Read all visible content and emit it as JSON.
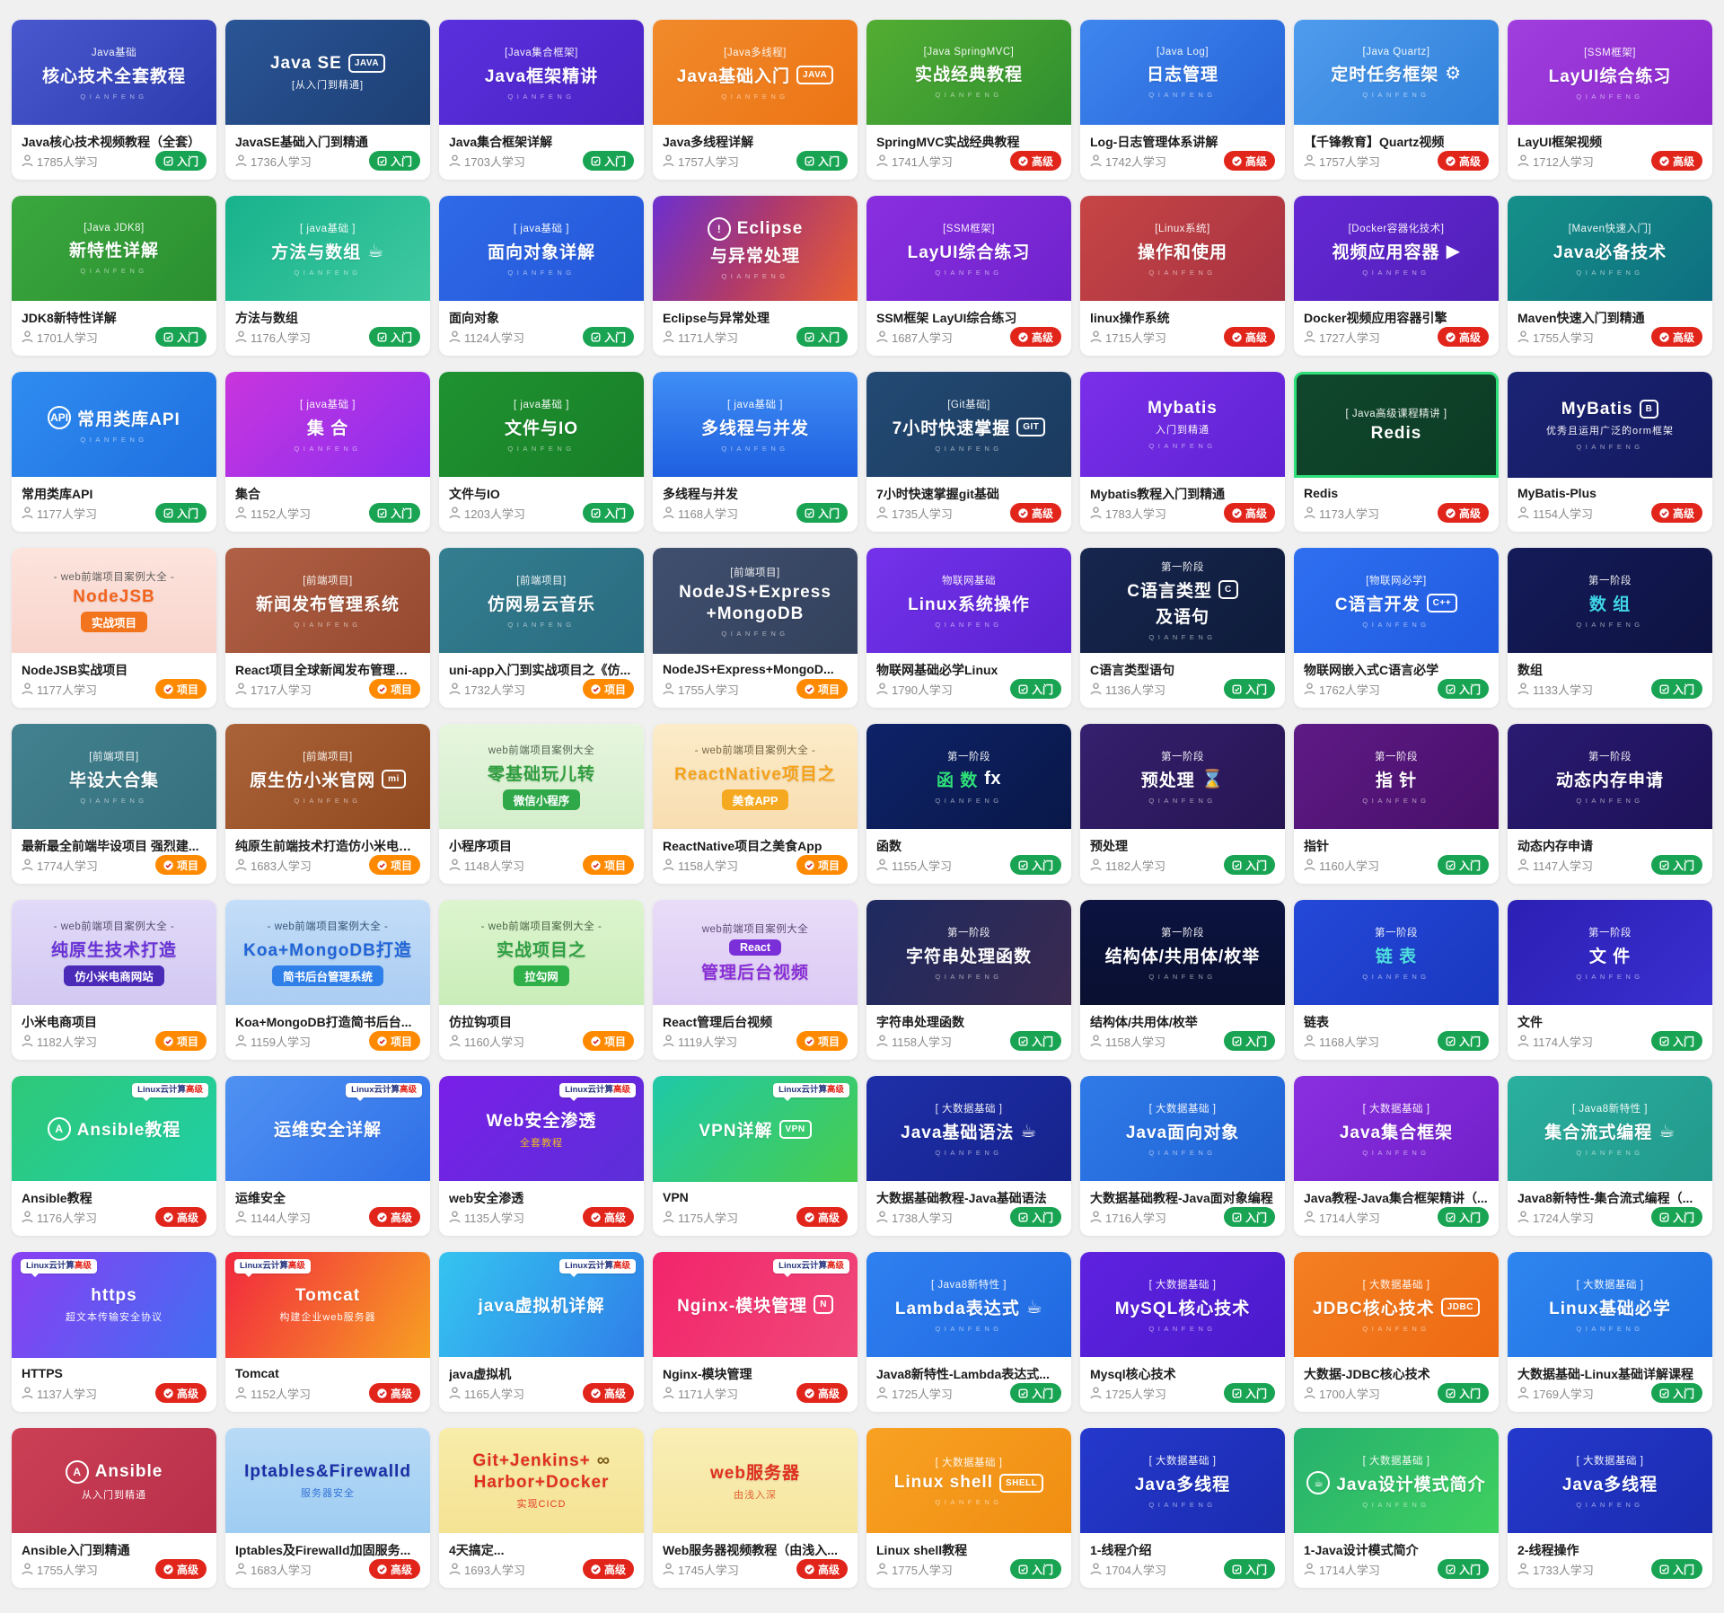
{
  "page": {
    "background": "#f0f0f1"
  },
  "watermark": "QIANFENG",
  "corner_badge": {
    "prefix": "Linux云计算",
    "highlight": "高级",
    "prefix_color": "#27357e",
    "highlight_color": "#e1251b"
  },
  "levels": {
    "b": {
      "label": "入门",
      "bg": "#18a452"
    },
    "a": {
      "label": "高级",
      "bg": "#e1251b"
    },
    "p": {
      "label": "项目",
      "bg": "#ff8a00"
    }
  },
  "cards": [
    {
      "t": "Java核心技术视频教程（全套）",
      "n": "1785人学习",
      "lv": "b",
      "th": {
        "bg": "linear-gradient(135deg,#4a58cf,#2c3cae)",
        "tag": "Java基础",
        "main": "核心技术全套教程",
        "wm": 1
      }
    },
    {
      "t": "JavaSE基础入门到精通",
      "n": "1736人学习",
      "lv": "b",
      "th": {
        "bg": "linear-gradient(135deg,#2a5596,#1d3f74)",
        "main": "Java SE",
        "sub": "[从入门到精通]",
        "icon": "JAVA",
        "iconBox": 1
      }
    },
    {
      "t": "Java集合框架详解",
      "n": "1703人学习",
      "lv": "b",
      "th": {
        "bg": "linear-gradient(135deg,#5a30dd,#4a22c4)",
        "tag": "[Java集合框架]",
        "main": "Java框架精讲",
        "wm": 1
      }
    },
    {
      "t": "Java多线程详解",
      "n": "1757人学习",
      "lv": "b",
      "th": {
        "bg": "linear-gradient(135deg,#f18a2b,#ec7414)",
        "tag": "[Java多线程]",
        "main": "Java基础入门",
        "icon": "JAVA",
        "iconBox": 1,
        "wm": 1
      }
    },
    {
      "t": "SpringMVC实战经典教程",
      "n": "1741人学习",
      "lv": "a",
      "th": {
        "bg": "linear-gradient(135deg,#53ad33,#2f8f2f)",
        "tag": "[Java SpringMVC]",
        "main": "实战经典教程",
        "wm": 1
      }
    },
    {
      "t": "Log-日志管理体系讲解",
      "n": "1742人学习",
      "lv": "a",
      "th": {
        "bg": "linear-gradient(135deg,#3f86ee,#2563d8)",
        "tag": "[Java Log]",
        "main": "日志管理",
        "wm": 1
      }
    },
    {
      "t": "【千锋教育】Quartz视频",
      "n": "1757人学习",
      "lv": "a",
      "th": {
        "bg": "linear-gradient(135deg,#4f9cee,#2f7fd9)",
        "tag": "[Java Quartz]",
        "main": "定时任务框架",
        "icon": "⚙",
        "wm": 1
      }
    },
    {
      "t": "LayUI框架视频",
      "n": "1712人学习",
      "lv": "a",
      "th": {
        "bg": "linear-gradient(135deg,#a03ede,#8a28cc)",
        "tag": "[SSM框架]",
        "main": "LayUI综合练习",
        "wm": 1
      }
    },
    {
      "t": "JDK8新特性详解",
      "n": "1701人学习",
      "lv": "b",
      "th": {
        "bg": "linear-gradient(135deg,#3aa83e,#2b8f30)",
        "tag": "[Java JDK8]",
        "main": "新特性详解",
        "wm": 1
      }
    },
    {
      "t": "方法与数组",
      "n": "1176人学习",
      "lv": "b",
      "th": {
        "bg": "linear-gradient(135deg,#17b28c,#3fc9a0)",
        "tag": "[ java基础 ]",
        "main": "方法与数组",
        "icon": "☕",
        "wm": 1
      }
    },
    {
      "t": "面向对象",
      "n": "1124人学习",
      "lv": "b",
      "th": {
        "bg": "linear-gradient(135deg,#2f6ae8,#2356d8)",
        "tag": "[ java基础 ]",
        "main": "面向对象详解",
        "wm": 1
      }
    },
    {
      "t": "Eclipse与异常处理",
      "n": "1171人学习",
      "lv": "b",
      "th": {
        "bg": "linear-gradient(120deg,#6c2fd0,#b03a6a,#e85f33)",
        "main": "Eclipse",
        "main2": "与异常处理",
        "icon": "!",
        "iconRound": 1,
        "wm": 1
      }
    },
    {
      "t": "SSM框架 LayUI综合练习",
      "n": "1687人学习",
      "lv": "a",
      "th": {
        "bg": "linear-gradient(135deg,#8a2fe0,#6f22cc)",
        "tag": "[SSM框架]",
        "main": "LayUI综合练习",
        "wm": 1
      }
    },
    {
      "t": "linux操作系统",
      "n": "1715人学习",
      "lv": "a",
      "th": {
        "bg": "linear-gradient(135deg,#c74545,#a63242)",
        "tag": "[Linux系统]",
        "main": "操作和使用",
        "wm": 1
      }
    },
    {
      "t": "Docker视频应用容器引擎",
      "n": "1727人学习",
      "lv": "a",
      "th": {
        "bg": "linear-gradient(135deg,#6528d4,#501fb8)",
        "tag": "[Docker容器化技术]",
        "main": "视频应用容器",
        "icon": "▶",
        "wm": 1
      }
    },
    {
      "t": "Maven快速入门到精通",
      "n": "1755人学习",
      "lv": "a",
      "th": {
        "bg": "linear-gradient(135deg,#159089,#0e6f80)",
        "tag": "[Maven快速入门]",
        "main": "Java必备技术",
        "wm": 1
      }
    },
    {
      "t": "常用类库API",
      "n": "1177人学习",
      "lv": "b",
      "th": {
        "bg": "linear-gradient(135deg,#2f8cf0,#1f6fe0)",
        "main": "常用类库API",
        "icon": "API",
        "iconRound": 1,
        "wm": 1
      }
    },
    {
      "t": "集合",
      "n": "1152人学习",
      "lv": "b",
      "th": {
        "bg": "linear-gradient(135deg,#c935dd,#8a2ff0)",
        "tag": "[ java基础 ]",
        "main": "集 合",
        "wm": 1
      }
    },
    {
      "t": "文件与IO",
      "n": "1203人学习",
      "lv": "b",
      "th": {
        "bg": "linear-gradient(135deg,#1f9230,#187f28)",
        "tag": "[ java基础 ]",
        "main": "文件与IO",
        "wm": 1
      }
    },
    {
      "t": "多线程与并发",
      "n": "1168人学习",
      "lv": "b",
      "th": {
        "bg": "linear-gradient(180deg,#3f8ef5,#1f5fe0)",
        "tag": "[ java基础 ]",
        "main": "多线程与并发",
        "wm": 1
      }
    },
    {
      "t": "7小时快速掌握git基础",
      "n": "1735人学习",
      "lv": "a",
      "th": {
        "bg": "linear-gradient(135deg,#234a74,#1b3a5e)",
        "tag": "[Git基础]",
        "main": "7小时快速掌握",
        "icon": "GIT",
        "iconBox": 1,
        "wm": 1
      }
    },
    {
      "t": "Mybatis教程入门到精通",
      "n": "1783人学习",
      "lv": "a",
      "th": {
        "bg": "linear-gradient(135deg,#7a2fe8,#5f22d4)",
        "main": "Mybatis",
        "sub": "入门到精通",
        "wm": 1
      }
    },
    {
      "t": "Redis",
      "n": "1173人学习",
      "lv": "a",
      "th": {
        "bg": "linear-gradient(135deg,#10482c,#0c3a24)",
        "border": "#2fe07a",
        "tag": "[ Java高级课程精讲 ]",
        "main": "Redis"
      }
    },
    {
      "t": "MyBatis-Plus",
      "n": "1154人学习",
      "lv": "a",
      "th": {
        "bg": "linear-gradient(135deg,#1b2375,#141a5e)",
        "main": "MyBatis",
        "sub": "优秀且运用广泛的orm框架",
        "icon": "B",
        "iconBox": 1,
        "wm": 1
      }
    },
    {
      "t": "NodeJSB实战项目",
      "n": "1177人学习",
      "lv": "p",
      "th": {
        "bg": "linear-gradient(180deg,#fce4dd,#f8d4cc)",
        "fg": "#555",
        "tag": "- web前端项目案例大全 -",
        "main": "NodeJSB",
        "mainC": "#f2641e",
        "pill": "实战项目",
        "pillBg": "#f2751e"
      }
    },
    {
      "t": "React项目全球新闻发布管理系统",
      "n": "1717人学习",
      "lv": "p",
      "th": {
        "bg": "linear-gradient(135deg,#b06045,#96492f)",
        "tag": "[前端项目]",
        "main": "新闻发布管理系统",
        "wm": 1
      }
    },
    {
      "t": "uni-app入门到实战项目之《仿...",
      "n": "1732人学习",
      "lv": "p",
      "th": {
        "bg": "linear-gradient(135deg,#337e90,#2a6b80)",
        "tag": "[前端项目]",
        "main": "仿网易云音乐",
        "wm": 1
      }
    },
    {
      "t": "NodeJS+Express+MongoD...",
      "n": "1755人学习",
      "lv": "p",
      "th": {
        "bg": "linear-gradient(135deg,#404f6e,#33415c)",
        "tag": "[前端项目]",
        "main": "NodeJS+Express",
        "main2": "+MongoDB",
        "wm": 1
      }
    },
    {
      "t": "物联网基础必学Linux",
      "n": "1790人学习",
      "lv": "b",
      "th": {
        "bg": "linear-gradient(135deg,#7433ea,#5a22d0)",
        "tag": "物联网基础",
        "main": "Linux系统操作",
        "wm": 1
      }
    },
    {
      "t": "C语言类型语句",
      "n": "1136人学习",
      "lv": "b",
      "th": {
        "bg": "linear-gradient(135deg,#16264e,#0f1b3a)",
        "tag": "第一阶段",
        "main": "C语言类型",
        "main2": "及语句",
        "icon": "C",
        "iconBox": 1,
        "wm": 1
      }
    },
    {
      "t": "物联网嵌入式C语言必学",
      "n": "1762人学习",
      "lv": "b",
      "th": {
        "bg": "linear-gradient(135deg,#2f6ff0,#1f5ae0)",
        "tag": "[物联网必学]",
        "main": "C语言开发",
        "icon": "C++",
        "iconBox": 1,
        "wm": 1
      }
    },
    {
      "t": "数组",
      "n": "1133人学习",
      "lv": "b",
      "th": {
        "bg": "linear-gradient(135deg,#141b58,#0e1342)",
        "tag": "第一阶段",
        "main": "数 组",
        "mainC": "#3fd4e8",
        "wm": 1
      }
    },
    {
      "t": "最新最全前端毕设项目 强烈建...",
      "n": "1774人学习",
      "lv": "p",
      "th": {
        "bg": "linear-gradient(135deg,#42818f,#36707e)",
        "tag": "[前端项目]",
        "main": "毕设大合集",
        "wm": 1
      }
    },
    {
      "t": "纯原生前端技术打造仿小米电商...",
      "n": "1683人学习",
      "lv": "p",
      "th": {
        "bg": "linear-gradient(135deg,#aa6238,#90481f)",
        "tag": "[前端项目]",
        "main": "原生仿小米官网",
        "icon": "mi",
        "iconBox": 1,
        "wm": 1
      }
    },
    {
      "t": "小程序项目",
      "n": "1148人学习",
      "lv": "p",
      "th": {
        "bg": "linear-gradient(180deg,#e7f6de,#d4eecb)",
        "fg": "#4a5a4a",
        "tag": "web前端项目案例大全",
        "main": "零基础玩儿转",
        "mainC": "#2f9e3f",
        "pill": "微信小程序",
        "pillBg": "#2fa84a"
      }
    },
    {
      "t": "ReactNative项目之美食App",
      "n": "1158人学习",
      "lv": "p",
      "th": {
        "bg": "linear-gradient(180deg,#fcecc9,#f8ddb0)",
        "fg": "#6a5a3a",
        "tag": "- web前端项目案例大全 -",
        "main": "ReactNative项目之",
        "mainC": "#f5a21b",
        "pill": "美食APP",
        "pillBg": "#f5a921"
      }
    },
    {
      "t": "函数",
      "n": "1155人学习",
      "lv": "b",
      "th": {
        "bg": "linear-gradient(135deg,#0e2268,#091848)",
        "tag": "第一阶段",
        "main": "函 数",
        "mainC": "#2fe07a",
        "icon": "fx",
        "wm": 1
      }
    },
    {
      "t": "预处理",
      "n": "1182人学习",
      "lv": "b",
      "th": {
        "bg": "linear-gradient(135deg,#35206e,#261552)",
        "tag": "第一阶段",
        "main": "预处理",
        "icon": "⌛",
        "wm": 1
      }
    },
    {
      "t": "指针",
      "n": "1160人学习",
      "lv": "b",
      "th": {
        "bg": "linear-gradient(135deg,#5e1a86,#471068)",
        "tag": "第一阶段",
        "main": "指 针",
        "wm": 1
      }
    },
    {
      "t": "动态内存申请",
      "n": "1147人学习",
      "lv": "b",
      "th": {
        "bg": "linear-gradient(135deg,#2a1a72,#1d1156)",
        "tag": "第一阶段",
        "main": "动态内存申请",
        "wm": 1
      }
    },
    {
      "t": "小米电商项目",
      "n": "1182人学习",
      "lv": "p",
      "th": {
        "bg": "linear-gradient(180deg,#e2daf8,#d2c8f2)",
        "fg": "#4a4460",
        "tag": "- web前端项目案例大全 -",
        "main": "纯原生技术打造",
        "mainC": "#6931d8",
        "pill": "仿小米电商网站",
        "pillBg": "#4a2bb8"
      }
    },
    {
      "t": "Koa+MongoDB打造简书后台...",
      "n": "1159人学习",
      "lv": "p",
      "th": {
        "bg": "linear-gradient(180deg,#c4ddf8,#aacdf2)",
        "fg": "#2a4a6e",
        "tag": "- web前端项目案例大全 -",
        "main": "Koa+MongoDB打造",
        "mainC": "#1f64d8",
        "pill": "简书后台管理系统",
        "pillBg": "#2f7fe8"
      }
    },
    {
      "t": "仿拉钩项目",
      "n": "1160人学习",
      "lv": "p",
      "th": {
        "bg": "linear-gradient(180deg,#ddf4cf,#c9edb8)",
        "fg": "#3a5a3a",
        "tag": "- web前端项目案例大全 -",
        "main": "实战项目之",
        "mainC": "#2fa043",
        "pill": "拉勾网",
        "pillBg": "#2fb048"
      }
    },
    {
      "t": "React管理后台视频",
      "n": "1119人学习",
      "lv": "p",
      "th": {
        "bg": "linear-gradient(180deg,#e9dcf8,#dccaf4)",
        "fg": "#54406e",
        "tag": "web前端项目案例大全",
        "pill": "React",
        "pillBg": "#7a2fd8",
        "pillPos": "above",
        "main": "管理后台视频",
        "mainC": "#8a2fd8"
      }
    },
    {
      "t": "字符串处理函数",
      "n": "1158人学习",
      "lv": "b",
      "th": {
        "bg": "linear-gradient(120deg,#1e2a60,#3a2a50)",
        "tag": "第一阶段",
        "main": "字符串处理函数",
        "wm": 1
      }
    },
    {
      "t": "结构体/共用体/枚举",
      "n": "1158人学习",
      "lv": "b",
      "th": {
        "bg": "linear-gradient(180deg,#0c1340,#091030)",
        "tag": "第一阶段",
        "main": "结构体/共用体/枚举",
        "wm": 1
      }
    },
    {
      "t": "链表",
      "n": "1168人学习",
      "lv": "b",
      "th": {
        "bg": "linear-gradient(135deg,#2448d8,#1a38c0)",
        "tag": "第一阶段",
        "main": "链 表",
        "mainC": "#4fe0e0",
        "wm": 1
      }
    },
    {
      "t": "文件",
      "n": "1174人学习",
      "lv": "b",
      "th": {
        "bg": "linear-gradient(135deg,#2c1fb4,#3a2fd0)",
        "tag": "第一阶段",
        "main": "文 件",
        "wm": 1
      }
    },
    {
      "t": "Ansible教程",
      "n": "1176人学习",
      "lv": "a",
      "th": {
        "bg": "linear-gradient(135deg,#2fc878,#1fcfa5)",
        "corner": "r",
        "icon": "A",
        "iconRound": 1,
        "main": "Ansible教程"
      }
    },
    {
      "t": "运维安全",
      "n": "1144人学习",
      "lv": "a",
      "th": {
        "bg": "linear-gradient(135deg,#4f92f2,#2f6fe8)",
        "corner": "r",
        "main": "运维安全详解"
      }
    },
    {
      "t": "web安全渗透",
      "n": "1135人学习",
      "lv": "a",
      "th": {
        "bg": "linear-gradient(135deg,#7a1fe8,#5b2fd8)",
        "corner": "r",
        "main": "Web安全渗透",
        "sub": "全套教程",
        "subC": "#f5c518"
      }
    },
    {
      "t": "VPN",
      "n": "1175人学习",
      "lv": "a",
      "th": {
        "bg": "linear-gradient(135deg,#1fc9a8,#48cc4f)",
        "corner": "r",
        "icon": "VPN",
        "iconBox": 1,
        "main": "VPN详解"
      }
    },
    {
      "t": "大数据基础教程-Java基础语法",
      "n": "1738人学习",
      "lv": "b",
      "th": {
        "bg": "linear-gradient(135deg,#1e2fa8,#16238c)",
        "tag": "[ 大数据基础 ]",
        "main": "Java基础语法",
        "icon": "☕",
        "wm": 1
      }
    },
    {
      "t": "大数据基础教程-Java面对象编程",
      "n": "1716人学习",
      "lv": "b",
      "th": {
        "bg": "linear-gradient(135deg,#2f7ae8,#1f62d4)",
        "tag": "[ 大数据基础 ]",
        "main": "Java面向对象",
        "wm": 1
      }
    },
    {
      "t": "Java教程-Java集合框架精讲（...",
      "n": "1714人学习",
      "lv": "b",
      "th": {
        "bg": "linear-gradient(135deg,#8a2fe0,#7120c9)",
        "tag": "[ 大数据基础 ]",
        "main": "Java集合框架",
        "wm": 1
      }
    },
    {
      "t": "Java8新特性-集合流式编程（...",
      "n": "1724人学习",
      "lv": "b",
      "th": {
        "bg": "linear-gradient(135deg,#2aaf9e,#22998c)",
        "tag": "[ Java8新特性 ]",
        "main": "集合流式编程",
        "icon": "☕",
        "wm": 1
      }
    },
    {
      "t": "HTTPS",
      "n": "1137人学习",
      "lv": "a",
      "th": {
        "bg": "linear-gradient(120deg,#8a3ff2,#3f6ff2)",
        "corner": "l",
        "main": "https",
        "sub": "超文本传输安全协议"
      }
    },
    {
      "t": "Tomcat",
      "n": "1152人学习",
      "lv": "a",
      "th": {
        "bg": "linear-gradient(120deg,#f2283f,#f7a022)",
        "corner": "l",
        "main": "Tomcat",
        "sub": "构建企业web服务器"
      }
    },
    {
      "t": "java虚拟机",
      "n": "1165人学习",
      "lv": "a",
      "th": {
        "bg": "linear-gradient(120deg,#35c4f0,#2f7fe8)",
        "corner": "r",
        "main": "java虚拟机详解"
      }
    },
    {
      "t": "Nginx-模块管理",
      "n": "1171人学习",
      "lv": "a",
      "th": {
        "bg": "linear-gradient(120deg,#f2246b,#f0497a)",
        "corner": "r",
        "icon": "N",
        "iconBox": 1,
        "main": "Nginx-模块管理"
      }
    },
    {
      "t": "Java8新特性-Lambda表达式...",
      "n": "1725人学习",
      "lv": "b",
      "th": {
        "bg": "linear-gradient(135deg,#2f80f0,#2068e0)",
        "tag": "[ Java8新特性 ]",
        "main": "Lambda表达式",
        "icon": "☕",
        "wm": 1
      }
    },
    {
      "t": "Mysql核心技术",
      "n": "1725人学习",
      "lv": "b",
      "th": {
        "bg": "linear-gradient(135deg,#5f22e0,#4a1acc)",
        "tag": "[ 大数据基础 ]",
        "main": "MySQL核心技术",
        "wm": 1
      }
    },
    {
      "t": "大数据-JDBC核心技术",
      "n": "1700人学习",
      "lv": "b",
      "th": {
        "bg": "linear-gradient(135deg,#f47f22,#ee6a12)",
        "tag": "[ 大数据基础 ]",
        "main": "JDBC核心技术",
        "icon": "JDBC",
        "iconBox": 1,
        "wm": 1
      }
    },
    {
      "t": "大数据基础-Linux基础详解课程",
      "n": "1769人学习",
      "lv": "b",
      "th": {
        "bg": "linear-gradient(135deg,#2f85f0,#1f6fe0)",
        "tag": "[ 大数据基础 ]",
        "main": "Linux基础必学",
        "wm": 1
      }
    },
    {
      "t": "Ansible入门到精通",
      "n": "1755人学习",
      "lv": "a",
      "th": {
        "bg": "linear-gradient(135deg,#cc4055,#b82f4a)",
        "icon": "A",
        "iconRound": 1,
        "main": "Ansible",
        "sub": "从入门到精通"
      }
    },
    {
      "t": "Iptables及Firewalld加固服务...",
      "n": "1683人学习",
      "lv": "a",
      "th": {
        "bg": "linear-gradient(180deg,#b8daf6,#9ecdf2)",
        "fg": "#2a4a7e",
        "main": "Iptables&Firewalld",
        "mainC": "#1a2fa8",
        "sub": "服务器安全",
        "subC": "#2f6fd8"
      }
    },
    {
      "t": "4天搞定...",
      "n": "1693人学习",
      "lv": "a",
      "th": {
        "bg": "linear-gradient(180deg,#f8ecaa,#f5e394)",
        "fg": "#7a5a1a",
        "main": "Git+Jenkins+",
        "main2": "Harbor+Docker",
        "mainC": "#e02f1f",
        "sub": "实现CICD",
        "subC": "#e02f1f",
        "icon": "∞"
      }
    },
    {
      "t": "Web服务器视频教程（由浅入...",
      "n": "1745人学习",
      "lv": "a",
      "th": {
        "bg": "linear-gradient(180deg,#f9eeb5,#f6e6a0)",
        "fg": "#7a5a1a",
        "main": "web服务器",
        "mainC": "#e0301f",
        "sub": "由浅入深",
        "subC": "#e05a2f"
      }
    },
    {
      "t": "Linux shell教程",
      "n": "1775人学习",
      "lv": "b",
      "th": {
        "bg": "linear-gradient(135deg,#f8a122,#f08e12)",
        "tag": "[ 大数据基础 ]",
        "main": "Linux shell",
        "icon": "SHELL",
        "iconBox": 1,
        "wm": 1
      }
    },
    {
      "t": "1-线程介绍",
      "n": "1704人学习",
      "lv": "b",
      "th": {
        "bg": "linear-gradient(135deg,#2438cc,#1b2cb0)",
        "tag": "[ 大数据基础 ]",
        "main": "Java多线程",
        "wm": 1
      }
    },
    {
      "t": "1-Java设计模式简介",
      "n": "1714人学习",
      "lv": "b",
      "th": {
        "bg": "linear-gradient(135deg,#26b06e,#3fd05f)",
        "tag": "[ 大数据基础 ]",
        "main": "Java设计模式简介",
        "icon": "☕",
        "iconRound": 1,
        "wm": 1
      }
    },
    {
      "t": "2-线程操作",
      "n": "1733人学习",
      "lv": "b",
      "th": {
        "bg": "linear-gradient(135deg,#2438cc,#1b2cb0)",
        "tag": "[ 大数据基础 ]",
        "main": "Java多线程",
        "wm": 1
      }
    }
  ]
}
